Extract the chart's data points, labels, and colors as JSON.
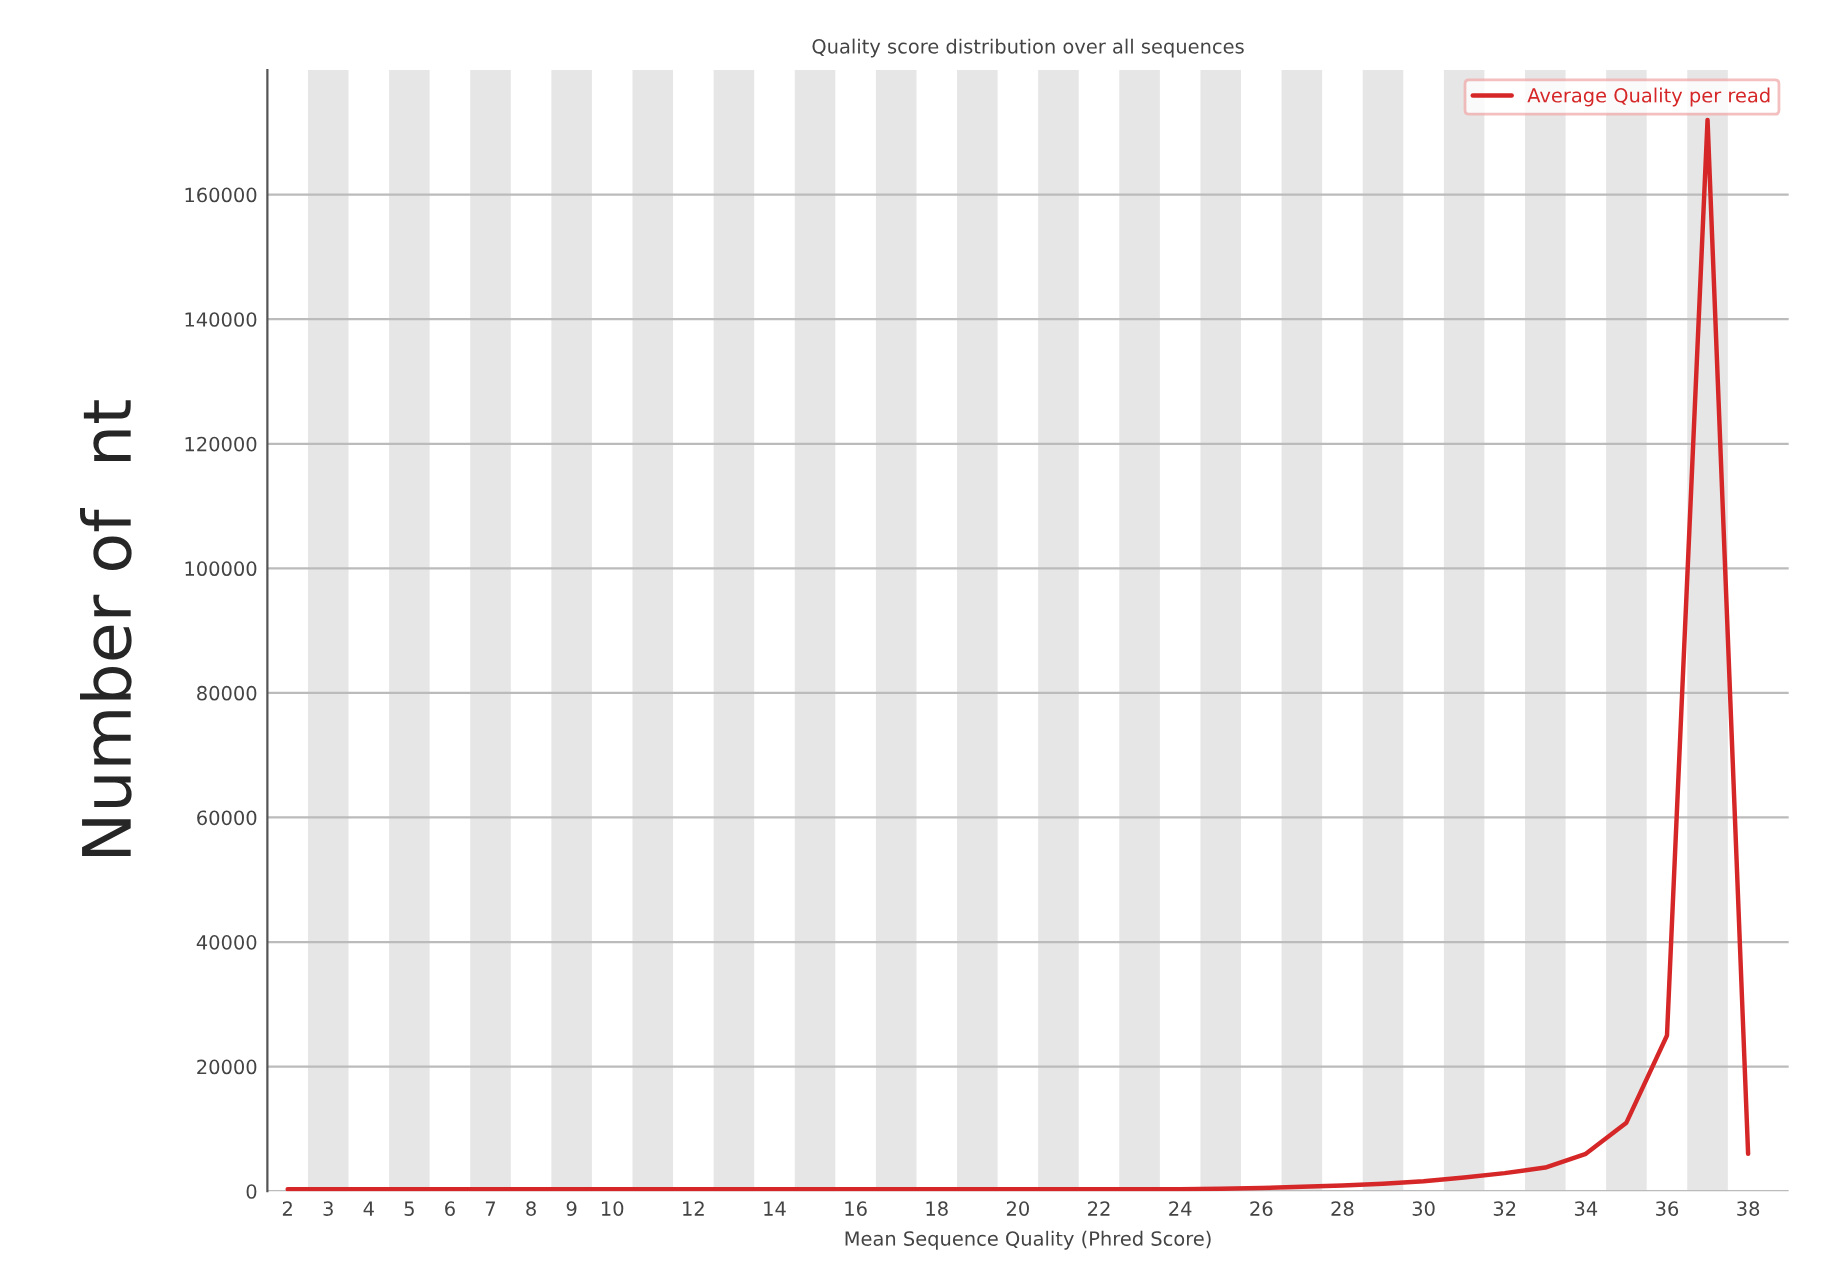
{
  "chart_data": {
    "type": "line",
    "title": "Quality score distribution over all sequences",
    "xlabel": "Mean Sequence Quality (Phred Score)",
    "ylabel": "Number of  nt",
    "x": [
      2,
      3,
      4,
      5,
      6,
      7,
      8,
      9,
      10,
      11,
      12,
      13,
      14,
      15,
      16,
      17,
      18,
      19,
      20,
      21,
      22,
      23,
      24,
      25,
      26,
      27,
      28,
      29,
      30,
      31,
      32,
      33,
      34,
      35,
      36,
      37,
      38
    ],
    "series": [
      {
        "name": "Average Quality per read",
        "color": "#d62728",
        "values": [
          300,
          300,
          300,
          300,
          300,
          300,
          300,
          300,
          300,
          300,
          300,
          300,
          300,
          300,
          300,
          300,
          300,
          300,
          300,
          300,
          300,
          300,
          300,
          400,
          500,
          700,
          900,
          1200,
          1600,
          2200,
          2900,
          3800,
          6000,
          11000,
          25000,
          172000,
          6000
        ]
      }
    ],
    "xlim": [
      1.5,
      39
    ],
    "xticks": [
      2,
      3,
      4,
      5,
      6,
      7,
      8,
      9,
      10,
      12,
      14,
      16,
      18,
      20,
      22,
      24,
      26,
      28,
      30,
      32,
      34,
      36,
      38
    ],
    "ylim": [
      0,
      180000
    ],
    "yticks": [
      0,
      20000,
      40000,
      60000,
      80000,
      100000,
      120000,
      140000,
      160000
    ],
    "bands": [
      {
        "axis": "x",
        "from": 2.5,
        "to": 3.5,
        "color": "#e6e6e6"
      },
      {
        "axis": "x",
        "from": 4.5,
        "to": 5.5,
        "color": "#e6e6e6"
      },
      {
        "axis": "x",
        "from": 6.5,
        "to": 7.5,
        "color": "#e6e6e6"
      },
      {
        "axis": "x",
        "from": 8.5,
        "to": 9.5,
        "color": "#e6e6e6"
      },
      {
        "axis": "x",
        "from": 10.5,
        "to": 11.5,
        "color": "#e6e6e6"
      },
      {
        "axis": "x",
        "from": 12.5,
        "to": 13.5,
        "color": "#e6e6e6"
      },
      {
        "axis": "x",
        "from": 14.5,
        "to": 15.5,
        "color": "#e6e6e6"
      },
      {
        "axis": "x",
        "from": 16.5,
        "to": 17.5,
        "color": "#e6e6e6"
      },
      {
        "axis": "x",
        "from": 18.5,
        "to": 19.5,
        "color": "#e6e6e6"
      },
      {
        "axis": "x",
        "from": 20.5,
        "to": 21.5,
        "color": "#e6e6e6"
      },
      {
        "axis": "x",
        "from": 22.5,
        "to": 23.5,
        "color": "#e6e6e6"
      },
      {
        "axis": "x",
        "from": 24.5,
        "to": 25.5,
        "color": "#e6e6e6"
      },
      {
        "axis": "x",
        "from": 26.5,
        "to": 27.5,
        "color": "#e6e6e6"
      },
      {
        "axis": "x",
        "from": 28.5,
        "to": 29.5,
        "color": "#e6e6e6"
      },
      {
        "axis": "x",
        "from": 30.5,
        "to": 31.5,
        "color": "#e6e6e6"
      },
      {
        "axis": "x",
        "from": 32.5,
        "to": 33.5,
        "color": "#e6e6e6"
      },
      {
        "axis": "x",
        "from": 34.5,
        "to": 35.5,
        "color": "#e6e6e6"
      },
      {
        "axis": "x",
        "from": 36.5,
        "to": 37.5,
        "color": "#e6e6e6"
      }
    ],
    "grid": "y",
    "legend": "top right",
    "marker": "none",
    "line_style": "solid"
  }
}
